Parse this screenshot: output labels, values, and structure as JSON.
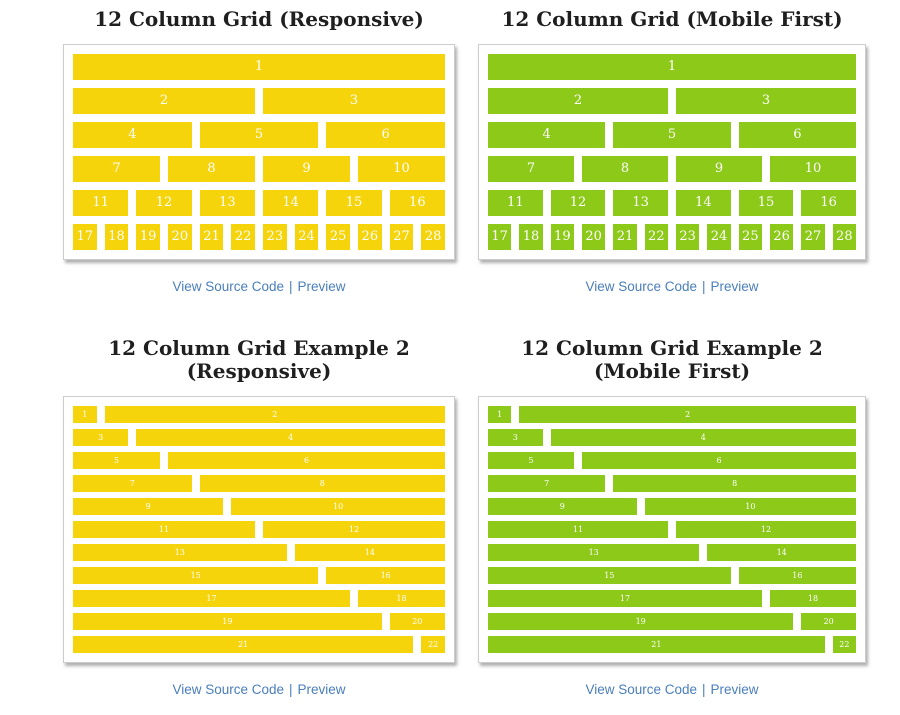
{
  "colors": {
    "responsive_yellow": "#F5D40C",
    "mobile_first_green": "#8CC919",
    "link_blue": "#4A7EBC",
    "title_dark": "#1F1F1F",
    "panel_border": "#CCCCCC",
    "page_background": "#FFFFFF",
    "cell_text": "#FFFFFF"
  },
  "row_sets": {
    "grid12": [
      [
        {
          "label": "1",
          "span": 12
        }
      ],
      [
        {
          "label": "2",
          "span": 6
        },
        {
          "label": "3",
          "span": 6
        }
      ],
      [
        {
          "label": "4",
          "span": 4
        },
        {
          "label": "5",
          "span": 4
        },
        {
          "label": "6",
          "span": 4
        }
      ],
      [
        {
          "label": "7",
          "span": 3
        },
        {
          "label": "8",
          "span": 3
        },
        {
          "label": "9",
          "span": 3
        },
        {
          "label": "10",
          "span": 3
        }
      ],
      [
        {
          "label": "11",
          "span": 2
        },
        {
          "label": "12",
          "span": 2
        },
        {
          "label": "13",
          "span": 2
        },
        {
          "label": "14",
          "span": 2
        },
        {
          "label": "15",
          "span": 2
        },
        {
          "label": "16",
          "span": 2
        }
      ],
      [
        {
          "label": "17",
          "span": 1
        },
        {
          "label": "18",
          "span": 1
        },
        {
          "label": "19",
          "span": 1
        },
        {
          "label": "20",
          "span": 1
        },
        {
          "label": "21",
          "span": 1
        },
        {
          "label": "22",
          "span": 1
        },
        {
          "label": "23",
          "span": 1
        },
        {
          "label": "24",
          "span": 1
        },
        {
          "label": "25",
          "span": 1
        },
        {
          "label": "26",
          "span": 1
        },
        {
          "label": "27",
          "span": 1
        },
        {
          "label": "28",
          "span": 1
        }
      ]
    ],
    "example2": [
      [
        {
          "label": "1",
          "span": 1
        },
        {
          "label": "2",
          "span": 11
        }
      ],
      [
        {
          "label": "3",
          "span": 2
        },
        {
          "label": "4",
          "span": 10
        }
      ],
      [
        {
          "label": "5",
          "span": 3
        },
        {
          "label": "6",
          "span": 9
        }
      ],
      [
        {
          "label": "7",
          "span": 4
        },
        {
          "label": "8",
          "span": 8
        }
      ],
      [
        {
          "label": "9",
          "span": 5
        },
        {
          "label": "10",
          "span": 7
        }
      ],
      [
        {
          "label": "11",
          "span": 6
        },
        {
          "label": "12",
          "span": 6
        }
      ],
      [
        {
          "label": "13",
          "span": 7
        },
        {
          "label": "14",
          "span": 5
        }
      ],
      [
        {
          "label": "15",
          "span": 8
        },
        {
          "label": "16",
          "span": 4
        }
      ],
      [
        {
          "label": "17",
          "span": 9
        },
        {
          "label": "18",
          "span": 3
        }
      ],
      [
        {
          "label": "19",
          "span": 10
        },
        {
          "label": "20",
          "span": 2
        }
      ],
      [
        {
          "label": "21",
          "span": 11
        },
        {
          "label": "22",
          "span": 1
        }
      ]
    ]
  },
  "panels": [
    {
      "id": "grid-responsive",
      "title_lines": [
        "12 Column Grid (Responsive)"
      ],
      "cell_color": "#F5D40C",
      "style": "regular",
      "rows": "grid12",
      "links": {
        "view_source": "View Source Code",
        "separator": "|",
        "preview": "Preview"
      }
    },
    {
      "id": "grid-mobile-first",
      "title_lines": [
        "12 Column Grid (Mobile First)"
      ],
      "cell_color": "#8CC919",
      "style": "regular",
      "rows": "grid12",
      "links": {
        "view_source": "View Source Code",
        "separator": "|",
        "preview": "Preview"
      }
    },
    {
      "id": "grid-example2-responsive",
      "title_lines": [
        "12 Column Grid Example 2",
        "(Responsive)"
      ],
      "cell_color": "#F5D40C",
      "style": "compact",
      "rows": "example2",
      "links": {
        "view_source": "View Source Code",
        "separator": "|",
        "preview": "Preview"
      }
    },
    {
      "id": "grid-example2-mobile-first",
      "title_lines": [
        "12 Column Grid Example 2",
        "(Mobile First)"
      ],
      "cell_color": "#8CC919",
      "style": "compact",
      "rows": "example2",
      "links": {
        "view_source": "View Source Code",
        "separator": "|",
        "preview": "Preview"
      }
    }
  ]
}
